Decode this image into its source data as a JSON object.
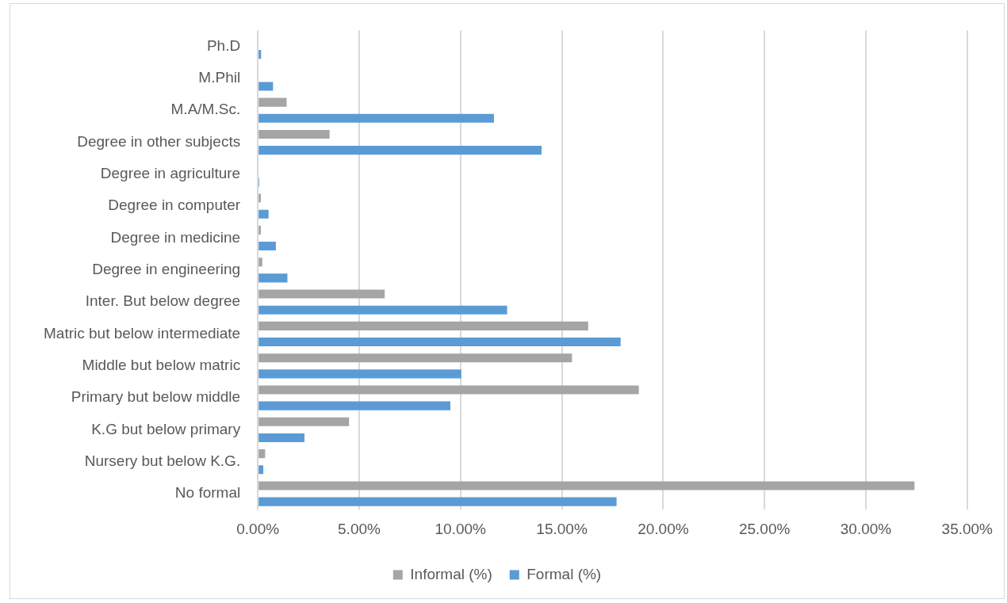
{
  "chart_data": {
    "type": "bar",
    "orientation": "horizontal",
    "categories": [
      "Ph.D",
      "M.Phil",
      "M.A/M.Sc.",
      "Degree in other subjects",
      "Degree in agriculture",
      "Degree in computer",
      "Degree in medicine",
      "Degree in engineering",
      "Inter. But below degree",
      "Matric but below intermediate",
      "Middle but below matric",
      "Primary but below middle",
      "K.G but below primary",
      "Nursery but below K.G.",
      "No formal"
    ],
    "series": [
      {
        "name": "Informal (%)",
        "color": "#a5a5a5",
        "values": [
          0,
          null,
          1.42,
          3.54,
          0,
          0.15,
          0.15,
          0.22,
          6.26,
          16.3,
          15.5,
          18.8,
          4.5,
          0.36,
          32.4
        ]
      },
      {
        "name": "Formal (%)",
        "color": "#5b9bd5",
        "values": [
          0.16,
          0.75,
          11.65,
          14.0,
          0.07,
          0.53,
          0.89,
          1.46,
          12.3,
          17.9,
          10.04,
          9.5,
          2.3,
          0.27,
          17.7
        ]
      }
    ],
    "xlim": [
      0,
      35
    ],
    "xticks": [
      {
        "value": 0,
        "label": "0.00%"
      },
      {
        "value": 5,
        "label": "5.00%"
      },
      {
        "value": 10,
        "label": "10.00%"
      },
      {
        "value": 15,
        "label": "15.00%"
      },
      {
        "value": 20,
        "label": "20.00%"
      },
      {
        "value": 25,
        "label": "25.00%"
      },
      {
        "value": 30,
        "label": "30.00%"
      },
      {
        "value": 35,
        "label": "35.00%"
      }
    ],
    "grid": "x",
    "legend": "bottom"
  }
}
